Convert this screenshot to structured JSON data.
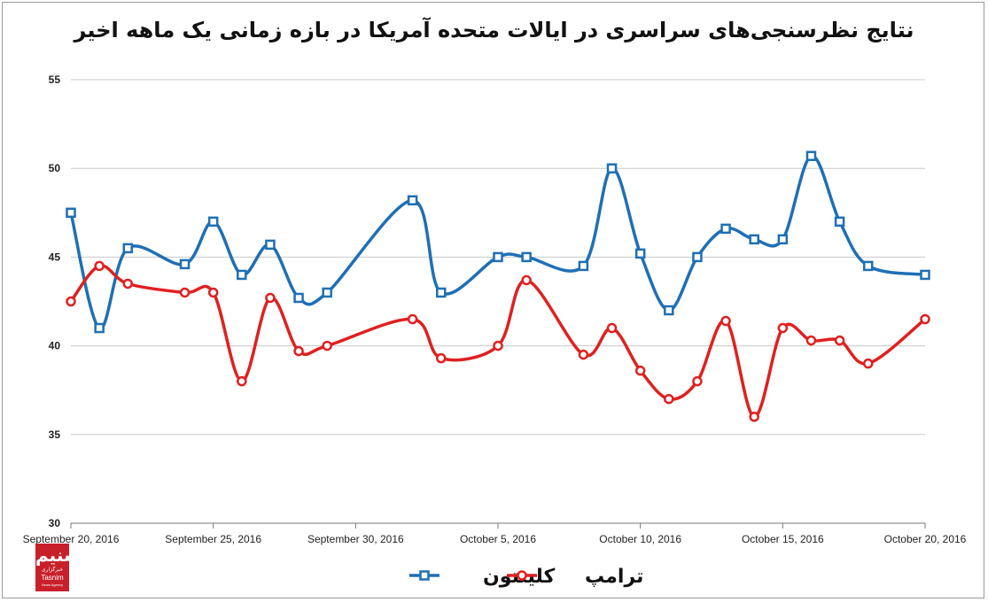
{
  "chart_data": {
    "type": "line",
    "title": "نتایج نظرسنجی‌های سراسری در ایالات متحده آمریکا در بازه زمانی یک ماهه اخیر",
    "xlabel": "",
    "ylabel": "",
    "ylim": [
      30,
      55
    ],
    "yticks": [
      30,
      35,
      40,
      45,
      50,
      55
    ],
    "xlim": [
      "2016-09-20",
      "2016-10-20"
    ],
    "xticks": [
      "September 20, 2016",
      "September 25, 2016",
      "September 30, 2016",
      "October 5, 2016",
      "October 10, 2016",
      "October 15, 2016",
      "October 20, 2016"
    ],
    "grid": true,
    "legend_position": "bottom",
    "x": [
      "2016-09-20",
      "2016-09-21",
      "2016-09-22",
      "2016-09-24",
      "2016-09-25",
      "2016-09-26",
      "2016-09-27",
      "2016-09-28",
      "2016-09-29",
      "2016-10-02",
      "2016-10-03",
      "2016-10-05",
      "2016-10-06",
      "2016-10-08",
      "2016-10-09",
      "2016-10-10",
      "2016-10-11",
      "2016-10-12",
      "2016-10-13",
      "2016-10-14",
      "2016-10-15",
      "2016-10-16",
      "2016-10-17",
      "2016-10-18",
      "2016-10-20"
    ],
    "series": [
      {
        "name": "کلینتون",
        "color": "#1f6fb5",
        "marker": "square",
        "values": [
          47.5,
          41.0,
          45.5,
          44.6,
          47.0,
          44.0,
          45.7,
          42.7,
          43.0,
          48.2,
          43.0,
          45.0,
          45.0,
          44.5,
          50.0,
          45.2,
          42.0,
          45.0,
          46.6,
          46.0,
          46.0,
          50.7,
          47.0,
          44.5,
          44.0
        ]
      },
      {
        "name": "ترامپ",
        "color": "#e02020",
        "marker": "circle",
        "values": [
          42.5,
          44.5,
          43.5,
          43.0,
          43.0,
          38.0,
          42.7,
          39.7,
          40.0,
          41.5,
          39.3,
          40.0,
          43.7,
          39.5,
          41.0,
          38.6,
          37.0,
          38.0,
          41.4,
          36.0,
          41.0,
          40.3,
          40.3,
          39.0,
          41.5
        ]
      }
    ]
  },
  "logo": {
    "mark": "تسنیم",
    "sub": "خبرگزاری",
    "name": "Tasnim",
    "agency": "News Agency"
  }
}
